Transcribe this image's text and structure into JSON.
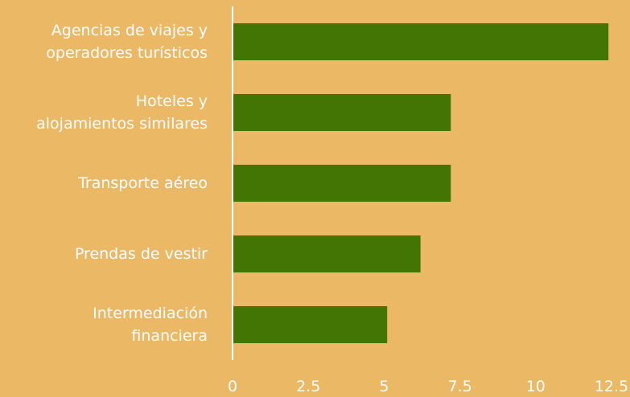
{
  "chart_data": {
    "type": "barh",
    "categories": [
      "Agencias de viajes y\noperadores turísticos",
      "Hoteles y\nalojamientos similares",
      "Transporte aéreo",
      "Prendas de vestir",
      "Intermediación\nfinanciera"
    ],
    "values": [
      12.4,
      7.2,
      7.2,
      6.2,
      5.1
    ],
    "color": "#437504",
    "xlim": [
      0,
      12.5
    ],
    "xticks": [
      0,
      2.5,
      5,
      7.5,
      10,
      12.5
    ],
    "grid": false
  }
}
